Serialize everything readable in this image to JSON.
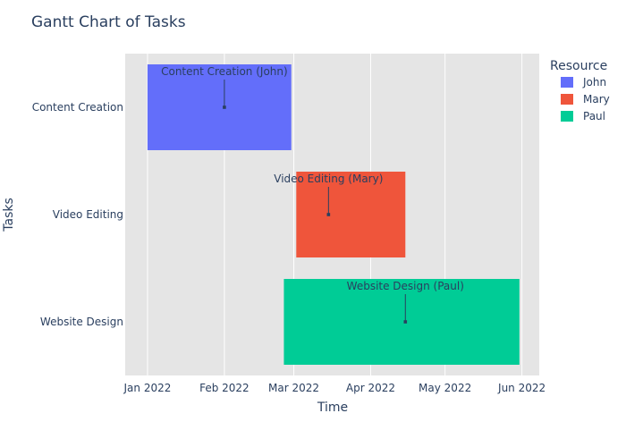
{
  "chart_data": {
    "type": "gantt",
    "title": "Gantt Chart of Tasks",
    "xlabel": "Time",
    "ylabel": "Tasks",
    "xlim": [
      "2021-12-23",
      "2022-06-08"
    ],
    "x_ticks": [
      {
        "date": "2022-01-01",
        "label": "Jan 2022"
      },
      {
        "date": "2022-02-01",
        "label": "Feb 2022"
      },
      {
        "date": "2022-03-01",
        "label": "Mar 2022"
      },
      {
        "date": "2022-04-01",
        "label": "Apr 2022"
      },
      {
        "date": "2022-05-01",
        "label": "May 2022"
      },
      {
        "date": "2022-06-01",
        "label": "Jun 2022"
      }
    ],
    "categories": [
      "Content Creation",
      "Video Editing",
      "Website Design"
    ],
    "tasks": [
      {
        "task": "Content Creation",
        "resource": "John",
        "start": "2022-01-01",
        "end": "2022-02-28",
        "annotation": "Content Creation (John)",
        "annotation_date": "2022-02-01"
      },
      {
        "task": "Video Editing",
        "resource": "Mary",
        "start": "2022-03-02",
        "end": "2022-04-15",
        "annotation": "Video Editing (Mary)",
        "annotation_date": "2022-03-15"
      },
      {
        "task": "Website Design",
        "resource": "Paul",
        "start": "2022-02-25",
        "end": "2022-05-31",
        "annotation": "Website Design (Paul)",
        "annotation_date": "2022-04-15"
      }
    ],
    "legend": {
      "title": "Resource",
      "placement": "right",
      "items": [
        {
          "name": "John",
          "color": "#636efa"
        },
        {
          "name": "Mary",
          "color": "#ef553b"
        },
        {
          "name": "Paul",
          "color": "#00cc96"
        }
      ]
    },
    "grid": true,
    "plot_background": "#e5e5e5"
  }
}
